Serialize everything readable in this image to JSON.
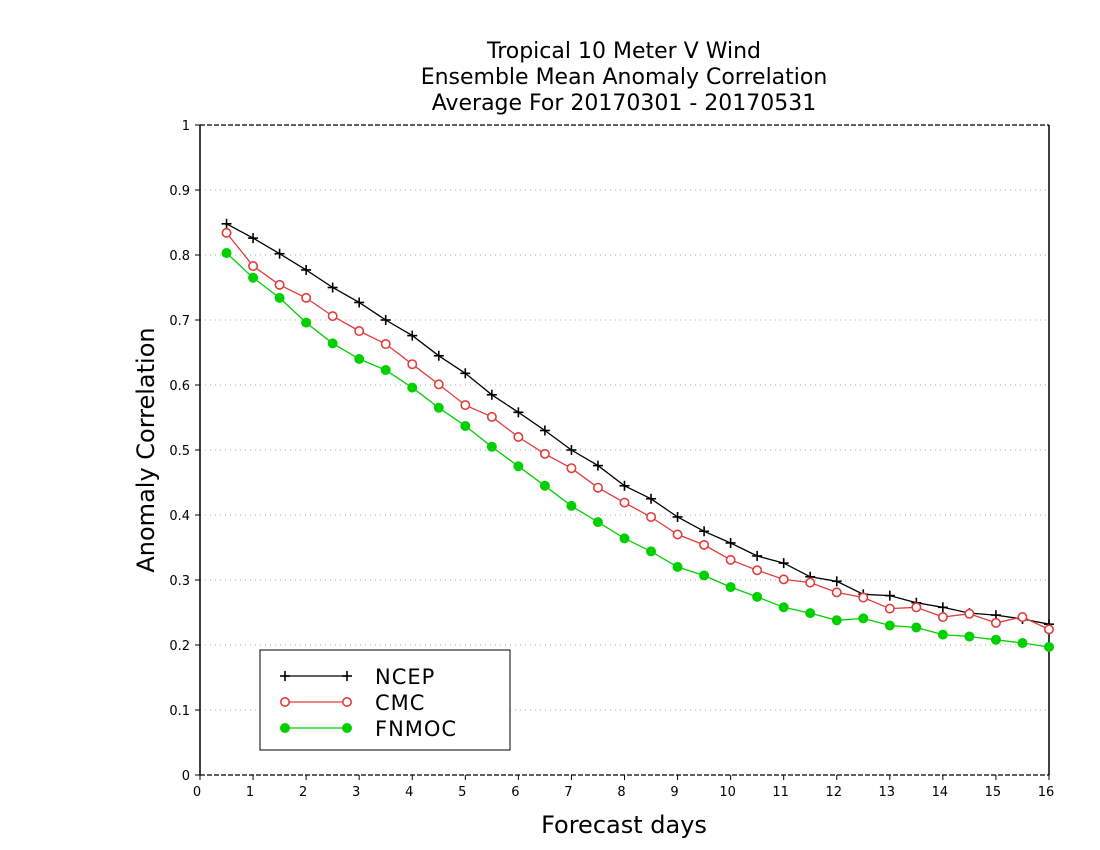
{
  "chart_data": {
    "type": "line",
    "title_lines": [
      "Tropical 10 Meter V Wind",
      "Ensemble Mean Anomaly Correlation",
      "Average For 20170301 - 20170531"
    ],
    "xlabel": "Forecast days",
    "ylabel": "Anomaly Correlation",
    "xlim": [
      0,
      16
    ],
    "ylim": [
      0,
      1
    ],
    "x_ticks": [
      "0",
      "1",
      "2",
      "3",
      "4",
      "5",
      "6",
      "7",
      "8",
      "9",
      "10",
      "11",
      "12",
      "13",
      "14",
      "15",
      "16"
    ],
    "y_ticks": [
      "0",
      "0.1",
      "0.2",
      "0.3",
      "0.4",
      "0.5",
      "0.6",
      "0.7",
      "0.8",
      "0.9",
      "1"
    ],
    "grid": "horizontal dotted",
    "legend_position": "bottom-left",
    "x": [
      0.5,
      1,
      1.5,
      2,
      2.5,
      3,
      3.5,
      4,
      4.5,
      5,
      5.5,
      6,
      6.5,
      7,
      7.5,
      8,
      8.5,
      9,
      9.5,
      10,
      10.5,
      11,
      11.5,
      12,
      12.5,
      13,
      13.5,
      14,
      14.5,
      15,
      15.5,
      16
    ],
    "series": [
      {
        "name": "NCEP",
        "color": "#000000",
        "marker": "plus",
        "values": [
          0.848,
          0.826,
          0.802,
          0.777,
          0.75,
          0.727,
          0.7,
          0.676,
          0.645,
          0.618,
          0.585,
          0.558,
          0.53,
          0.5,
          0.476,
          0.445,
          0.425,
          0.397,
          0.375,
          0.357,
          0.337,
          0.326,
          0.305,
          0.298,
          0.278,
          0.276,
          0.265,
          0.258,
          0.249,
          0.246,
          0.24,
          0.232
        ]
      },
      {
        "name": "CMC",
        "color": "#e23c3c",
        "marker": "open-circle",
        "values": [
          0.834,
          0.783,
          0.754,
          0.734,
          0.706,
          0.683,
          0.663,
          0.632,
          0.601,
          0.569,
          0.551,
          0.52,
          0.494,
          0.472,
          0.442,
          0.419,
          0.397,
          0.37,
          0.354,
          0.331,
          0.315,
          0.301,
          0.296,
          0.281,
          0.273,
          0.256,
          0.258,
          0.243,
          0.248,
          0.234,
          0.243,
          0.224
        ]
      },
      {
        "name": "FNMOC",
        "color": "#00d000",
        "marker": "filled-circle",
        "values": [
          0.803,
          0.765,
          0.734,
          0.696,
          0.664,
          0.64,
          0.623,
          0.596,
          0.565,
          0.537,
          0.505,
          0.475,
          0.445,
          0.414,
          0.389,
          0.364,
          0.344,
          0.32,
          0.307,
          0.289,
          0.274,
          0.258,
          0.249,
          0.238,
          0.241,
          0.23,
          0.227,
          0.216,
          0.213,
          0.208,
          0.203,
          0.197
        ]
      }
    ]
  }
}
